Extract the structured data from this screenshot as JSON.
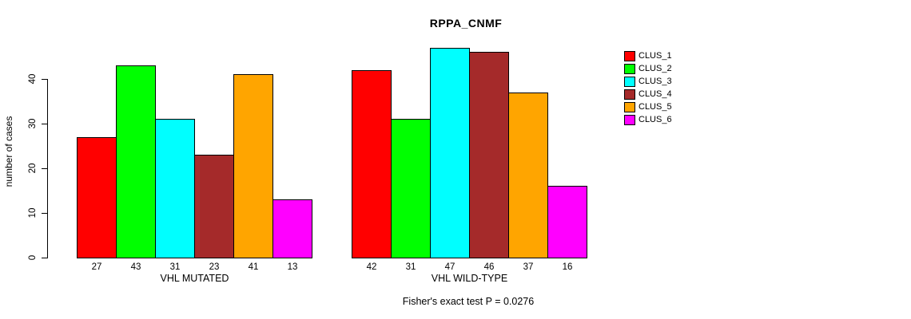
{
  "title": "RPPA_CNMF",
  "footer": "Fisher's exact test P = 0.0276",
  "chart_data": {
    "type": "bar",
    "title": "RPPA_CNMF",
    "ylabel": "number of cases",
    "xlabel": "",
    "annotation": "Fisher's exact test P = 0.0276",
    "categories": [
      "CLUS_1",
      "CLUS_2",
      "CLUS_3",
      "CLUS_4",
      "CLUS_5",
      "CLUS_6"
    ],
    "groups": [
      {
        "label": "VHL MUTATED",
        "values": [
          27,
          43,
          31,
          23,
          41,
          13
        ]
      },
      {
        "label": "VHL WILD-TYPE",
        "values": [
          42,
          31,
          47,
          46,
          37,
          16
        ]
      }
    ],
    "colors": [
      "#ff0000",
      "#00ff00",
      "#00ffff",
      "#a52a2a",
      "#ffa500",
      "#ff00ff"
    ],
    "legend": {
      "position": "right",
      "entries": [
        "CLUS_1",
        "CLUS_2",
        "CLUS_3",
        "CLUS_4",
        "CLUS_5",
        "CLUS_6"
      ]
    },
    "yticks": [
      0,
      10,
      20,
      30,
      40
    ],
    "ylim": [
      0,
      47
    ],
    "grid": false,
    "bar_value_labels_shown": true
  }
}
